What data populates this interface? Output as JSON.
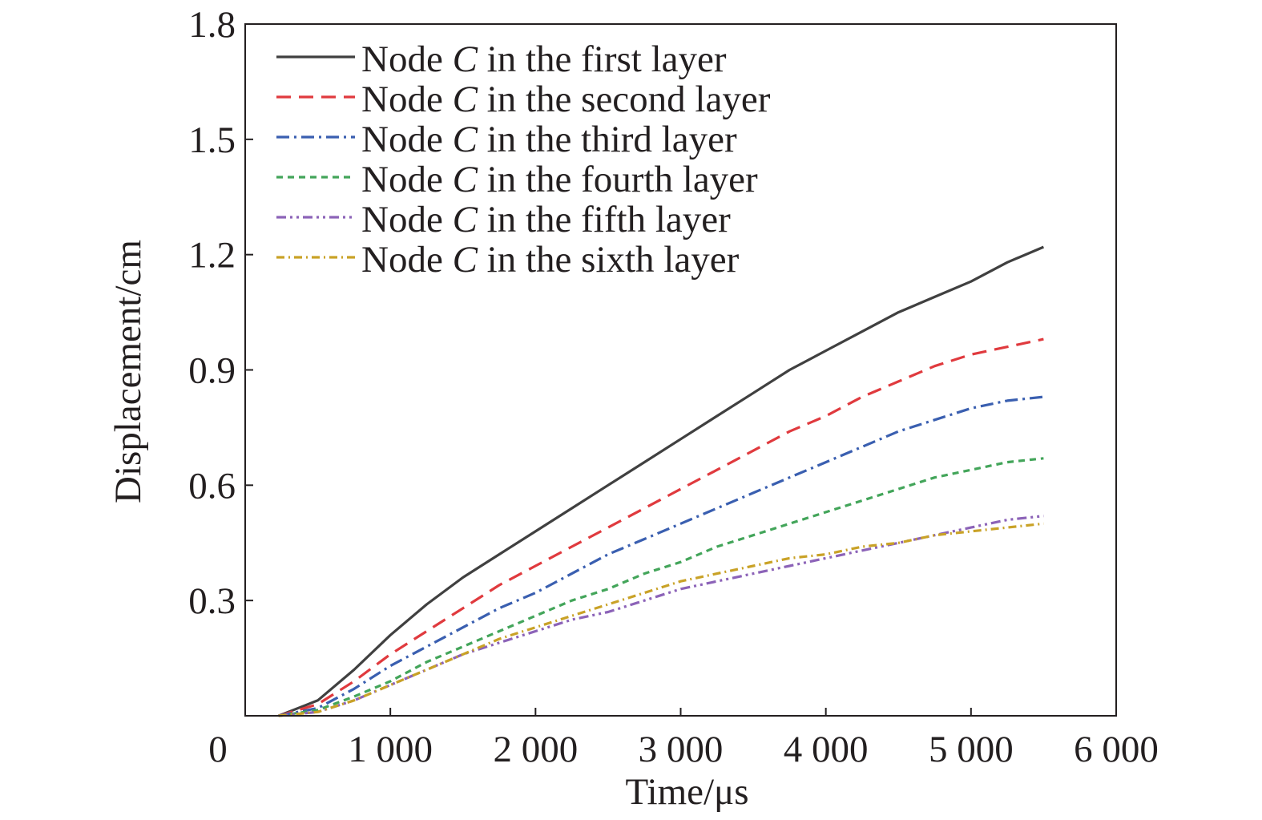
{
  "chart_data": {
    "type": "line",
    "xlabel": "Time/μs",
    "ylabel": "Displacement/cm",
    "xlim": [
      0,
      6000
    ],
    "ylim": [
      0,
      1.8
    ],
    "x_ticks": [
      {
        "value": 0,
        "label": "0"
      },
      {
        "value": 1000,
        "label": "1 000"
      },
      {
        "value": 2000,
        "label": "2 000"
      },
      {
        "value": 3000,
        "label": "3 000"
      },
      {
        "value": 4000,
        "label": "4 000"
      },
      {
        "value": 5000,
        "label": "5 000"
      },
      {
        "value": 6000,
        "label": "6 000"
      }
    ],
    "y_ticks": [
      {
        "value": 0.3,
        "label": "0.3"
      },
      {
        "value": 0.6,
        "label": "0.6"
      },
      {
        "value": 0.9,
        "label": "0.9"
      },
      {
        "value": 1.2,
        "label": "1.2"
      },
      {
        "value": 1.5,
        "label": "1.5"
      },
      {
        "value": 1.8,
        "label": "1.8"
      }
    ],
    "grid": false,
    "legend_position": "top-left",
    "x": [
      230,
      500,
      750,
      1000,
      1250,
      1500,
      1750,
      2000,
      2250,
      2500,
      2750,
      3000,
      3250,
      3500,
      3750,
      4000,
      4250,
      4500,
      4750,
      5000,
      5250,
      5500
    ],
    "series": [
      {
        "name": "Node",
        "name_italic": "C",
        "name_suffix": "in the first layer",
        "color": "#404040",
        "dash": "solid",
        "values": [
          0.0,
          0.04,
          0.12,
          0.21,
          0.29,
          0.36,
          0.42,
          0.48,
          0.54,
          0.6,
          0.66,
          0.72,
          0.78,
          0.84,
          0.9,
          0.95,
          1.0,
          1.05,
          1.09,
          1.13,
          1.18,
          1.22
        ]
      },
      {
        "name": "Node",
        "name_italic": "C",
        "name_suffix": "in the second layer",
        "color": "#e03a3e",
        "dash": "long-dash",
        "values": [
          0.0,
          0.03,
          0.09,
          0.16,
          0.22,
          0.28,
          0.34,
          0.39,
          0.44,
          0.49,
          0.54,
          0.59,
          0.64,
          0.69,
          0.74,
          0.78,
          0.83,
          0.87,
          0.91,
          0.94,
          0.96,
          0.98
        ]
      },
      {
        "name": "Node",
        "name_italic": "C",
        "name_suffix": "in the third layer",
        "color": "#3a5fb0",
        "dash": "dash-dot",
        "values": [
          0.0,
          0.02,
          0.07,
          0.13,
          0.18,
          0.23,
          0.28,
          0.32,
          0.37,
          0.42,
          0.46,
          0.5,
          0.54,
          0.58,
          0.62,
          0.66,
          0.7,
          0.74,
          0.77,
          0.8,
          0.82,
          0.83
        ]
      },
      {
        "name": "Node",
        "name_italic": "C",
        "name_suffix": "in the fourth layer",
        "color": "#43a55a",
        "dash": "short-dash",
        "values": [
          0.0,
          0.015,
          0.05,
          0.09,
          0.14,
          0.18,
          0.22,
          0.26,
          0.3,
          0.33,
          0.37,
          0.4,
          0.44,
          0.47,
          0.5,
          0.53,
          0.56,
          0.59,
          0.62,
          0.64,
          0.66,
          0.67
        ]
      },
      {
        "name": "Node",
        "name_italic": "C",
        "name_suffix": "in the fifth layer",
        "color": "#8c63b8",
        "dash": "dash-dot-dot",
        "values": [
          0.0,
          0.01,
          0.04,
          0.08,
          0.12,
          0.16,
          0.19,
          0.22,
          0.25,
          0.27,
          0.3,
          0.33,
          0.35,
          0.37,
          0.39,
          0.41,
          0.43,
          0.45,
          0.47,
          0.49,
          0.51,
          0.52
        ]
      },
      {
        "name": "Node",
        "name_italic": "C",
        "name_suffix": "in the sixth layer",
        "color": "#c9a227",
        "dash": "dash-dot-fine",
        "values": [
          0.0,
          0.01,
          0.04,
          0.08,
          0.12,
          0.16,
          0.2,
          0.23,
          0.26,
          0.29,
          0.32,
          0.35,
          0.37,
          0.39,
          0.41,
          0.42,
          0.44,
          0.45,
          0.47,
          0.48,
          0.49,
          0.5
        ]
      }
    ]
  }
}
